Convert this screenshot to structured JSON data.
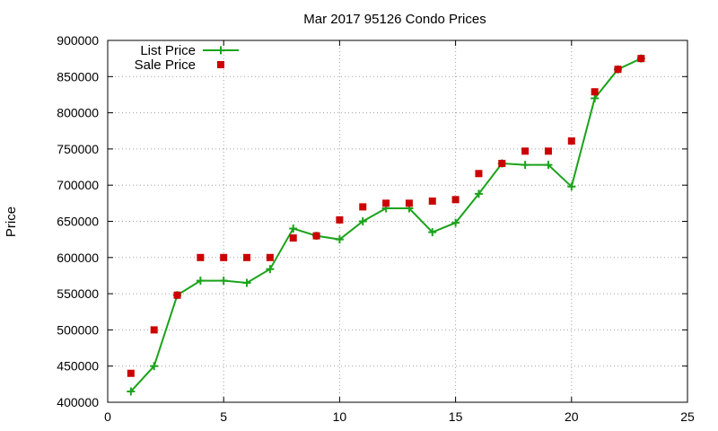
{
  "chart_data": {
    "type": "line",
    "title": "Mar 2017 95126 Condo Prices",
    "xlabel": "",
    "ylabel": "Price",
    "xlim": [
      0,
      25
    ],
    "ylim": [
      400000,
      900000
    ],
    "xticks": [
      0,
      5,
      10,
      15,
      20,
      25
    ],
    "yticks": [
      400000,
      450000,
      500000,
      550000,
      600000,
      650000,
      700000,
      750000,
      800000,
      850000,
      900000
    ],
    "grid": true,
    "legend_position": "top-left",
    "series": [
      {
        "name": "List Price",
        "style": "line-points",
        "marker": "plus",
        "color": "#1aa31a",
        "x": [
          1,
          2,
          3,
          4,
          5,
          6,
          7,
          8,
          9,
          10,
          11,
          12,
          13,
          14,
          15,
          16,
          17,
          18,
          19,
          20,
          21,
          22,
          23
        ],
        "y": [
          415000,
          450000,
          548000,
          568000,
          568000,
          565000,
          584000,
          640000,
          630000,
          625000,
          650000,
          668000,
          668000,
          635000,
          648000,
          688000,
          730000,
          728000,
          728000,
          698000,
          820000,
          860000,
          875000
        ]
      },
      {
        "name": "Sale Price",
        "style": "points",
        "marker": "square",
        "color": "#cc0000",
        "x": [
          1,
          2,
          3,
          4,
          5,
          6,
          7,
          8,
          9,
          10,
          11,
          12,
          13,
          14,
          15,
          16,
          17,
          18,
          19,
          20,
          21,
          22,
          23
        ],
        "y": [
          440000,
          500000,
          548000,
          600000,
          600000,
          600000,
          600000,
          627000,
          630000,
          652000,
          670000,
          675000,
          675000,
          678000,
          680000,
          716000,
          730000,
          747000,
          747000,
          761000,
          829000,
          860000,
          875000
        ]
      }
    ]
  }
}
